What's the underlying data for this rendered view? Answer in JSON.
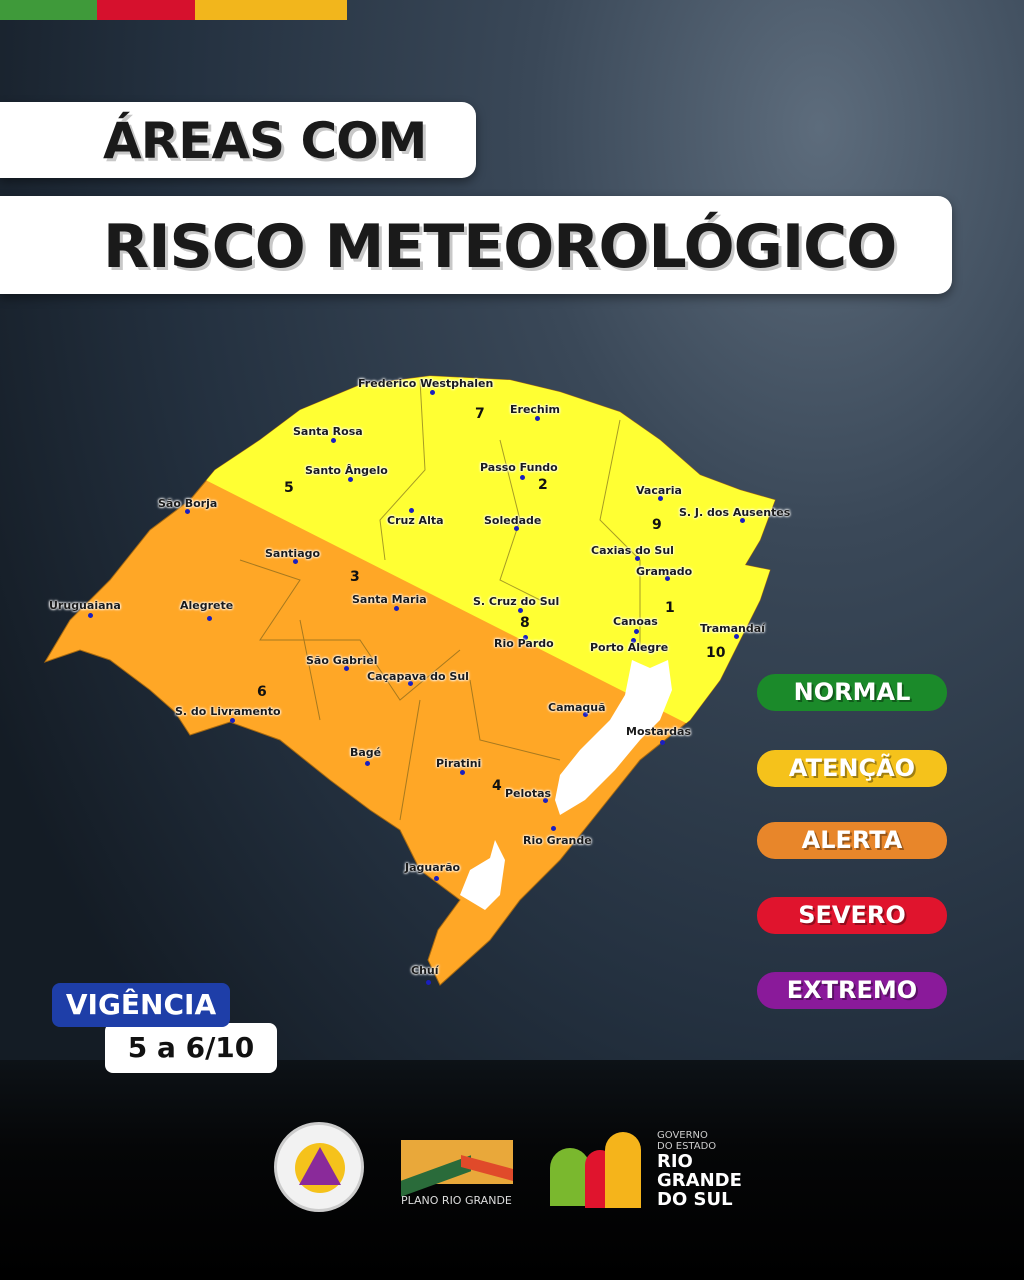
{
  "header": {
    "line1": "ÁREAS COM",
    "line2": "RISCO METEOROLÓGICO"
  },
  "colors": {
    "normal": "#1b8a2a",
    "atencao": "#f5c21b",
    "alerta": "#e8862a",
    "severo": "#e0142d",
    "extremo": "#8a1a9a",
    "map_attention": "#ffff33",
    "map_alert": "#ffa726"
  },
  "map": {
    "regions": [
      "1",
      "2",
      "3",
      "4",
      "5",
      "6",
      "7",
      "8",
      "9",
      "10"
    ],
    "cities": [
      "Frederico Westphalen",
      "Erechim",
      "Santa Rosa",
      "Santo Ângelo",
      "Passo Fundo",
      "Vacaria",
      "S. J. dos Ausentes",
      "São Borja",
      "Cruz Alta",
      "Soledade",
      "Caxias do Sul",
      "Gramado",
      "Santiago",
      "Santa Maria",
      "S. Cruz do Sul",
      "Canoas",
      "Tramandaí",
      "Uruguaiana",
      "Alegrete",
      "Rio Pardo",
      "Porto Alegre",
      "São Gabriel",
      "Caçapava do Sul",
      "S. do Livramento",
      "Camaquã",
      "Mostardas",
      "Bagé",
      "Piratini",
      "Pelotas",
      "Rio Grande",
      "Jaguarão",
      "Chuí"
    ]
  },
  "legend": [
    "NORMAL",
    "ATENÇÃO",
    "ALERTA",
    "SEVERO",
    "EXTREMO"
  ],
  "validity": {
    "label": "VIGÊNCIA",
    "dates": "5 a 6/10"
  },
  "logos": {
    "defesa_civil": "CASA MILITAR DEFESA CIVIL - RS",
    "plano": "PLANO RIO GRANDE",
    "governo_small": "GOVERNO DO ESTADO",
    "governo_big": "RIO GRANDE DO SUL"
  }
}
